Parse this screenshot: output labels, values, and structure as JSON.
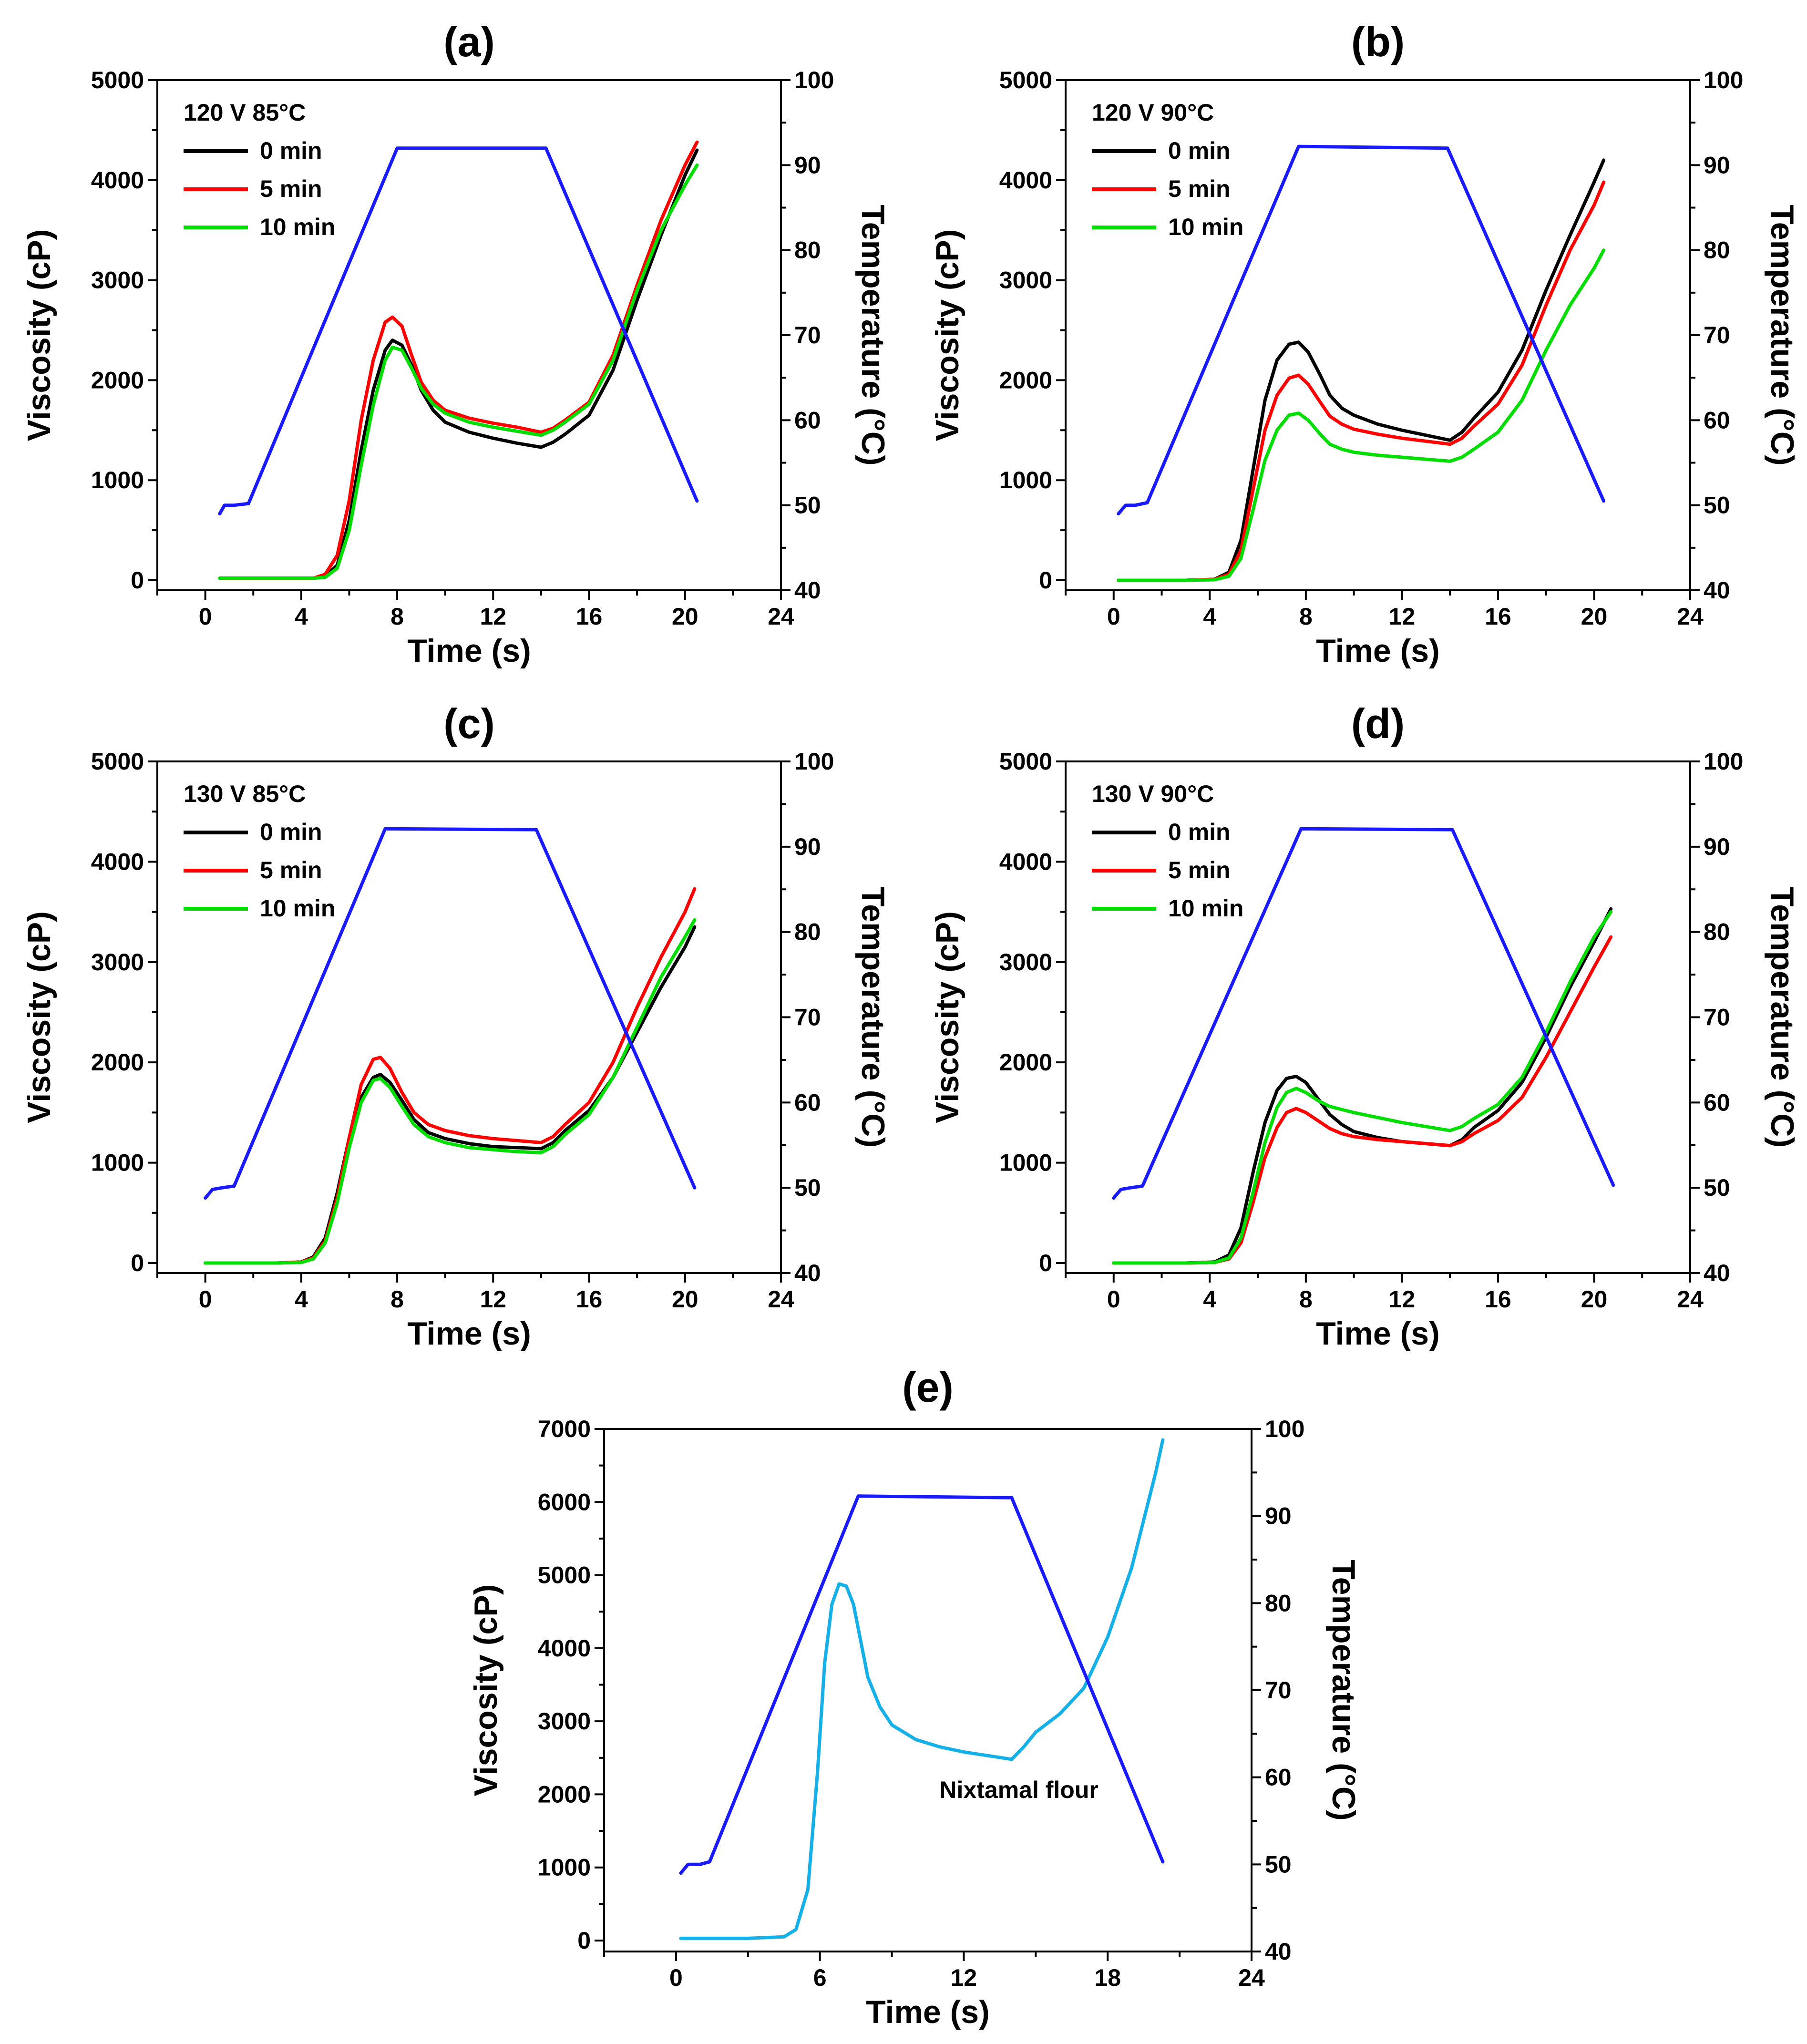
{
  "chart_data": [
    {
      "panel": "(a)",
      "type": "line",
      "xlabel": "Time (s)",
      "ylabel": "Viscosity (cP)",
      "y2label": "Temperature (°C)",
      "xlim": [
        -2,
        24
      ],
      "ylim": [
        -100,
        5000
      ],
      "y2lim": [
        40,
        100
      ],
      "xticks": [
        0,
        4,
        8,
        12,
        16,
        20,
        24
      ],
      "yticks": [
        0,
        1000,
        2000,
        3000,
        4000,
        5000
      ],
      "y2ticks": [
        40,
        50,
        60,
        70,
        80,
        90,
        100
      ],
      "legend_title": "120 V 85°C",
      "series": [
        {
          "name": "0 min",
          "color": "#000000",
          "axis": "left",
          "x": [
            0.6,
            3,
            4.5,
            5,
            5.5,
            6,
            6.5,
            7,
            7.5,
            7.8,
            8.2,
            8.6,
            9,
            9.5,
            10,
            11,
            12,
            13,
            14,
            14.5,
            15,
            16,
            17,
            18,
            19,
            20,
            20.5
          ],
          "y": [
            20,
            20,
            20,
            40,
            150,
            600,
            1300,
            1900,
            2300,
            2400,
            2350,
            2150,
            1900,
            1700,
            1580,
            1480,
            1420,
            1370,
            1330,
            1380,
            1460,
            1650,
            2100,
            2800,
            3450,
            4050,
            4300
          ]
        },
        {
          "name": "5 min",
          "color": "#ff0000",
          "axis": "left",
          "x": [
            0.6,
            3,
            4.5,
            5,
            5.5,
            6,
            6.5,
            7,
            7.5,
            7.8,
            8.2,
            8.6,
            9,
            9.5,
            10,
            11,
            12,
            13,
            14,
            14.5,
            15,
            16,
            17,
            18,
            19,
            20,
            20.5
          ],
          "y": [
            20,
            20,
            20,
            60,
            250,
            800,
            1600,
            2200,
            2580,
            2630,
            2540,
            2250,
            1980,
            1800,
            1700,
            1620,
            1570,
            1530,
            1480,
            1520,
            1600,
            1780,
            2250,
            2950,
            3600,
            4150,
            4380
          ]
        },
        {
          "name": "10 min",
          "color": "#00dd00",
          "axis": "left",
          "x": [
            0.6,
            3,
            4.5,
            5,
            5.5,
            6,
            6.5,
            7,
            7.5,
            7.8,
            8.2,
            8.6,
            9,
            9.5,
            10,
            11,
            12,
            13,
            14,
            14.5,
            15,
            16,
            17,
            18,
            19,
            20,
            20.5
          ],
          "y": [
            20,
            20,
            20,
            30,
            120,
            500,
            1150,
            1750,
            2200,
            2330,
            2300,
            2120,
            1920,
            1760,
            1670,
            1580,
            1530,
            1490,
            1450,
            1500,
            1580,
            1760,
            2200,
            2900,
            3500,
            3950,
            4150
          ]
        },
        {
          "name": "Temperature",
          "color": "#1a1aff",
          "axis": "right",
          "x": [
            0.6,
            0.8,
            1.2,
            1.8,
            8,
            14.2,
            20.5
          ],
          "y": [
            49,
            50,
            50,
            50.2,
            92,
            92,
            50.5
          ]
        }
      ]
    },
    {
      "panel": "(b)",
      "type": "line",
      "xlabel": "Time (s)",
      "ylabel": "Viscosity (cP)",
      "y2label": "Temperature (°C)",
      "xlim": [
        -2,
        24
      ],
      "ylim": [
        -100,
        5000
      ],
      "y2lim": [
        40,
        100
      ],
      "xticks": [
        0,
        4,
        8,
        12,
        16,
        20,
        24
      ],
      "yticks": [
        0,
        1000,
        2000,
        3000,
        4000,
        5000
      ],
      "y2ticks": [
        40,
        50,
        60,
        70,
        80,
        90,
        100
      ],
      "legend_title": "120 V 90°C",
      "series": [
        {
          "name": "0 min",
          "color": "#000000",
          "axis": "left",
          "x": [
            0.2,
            3,
            4.2,
            4.8,
            5.3,
            5.8,
            6.3,
            6.8,
            7.3,
            7.7,
            8.1,
            8.6,
            9,
            9.5,
            10,
            11,
            12,
            13,
            14,
            14.5,
            15,
            16,
            17,
            18,
            19,
            20,
            20.4
          ],
          "y": [
            0,
            0,
            10,
            80,
            400,
            1100,
            1800,
            2200,
            2360,
            2380,
            2280,
            2050,
            1850,
            1720,
            1650,
            1560,
            1500,
            1450,
            1400,
            1480,
            1620,
            1880,
            2300,
            2900,
            3450,
            3980,
            4200
          ]
        },
        {
          "name": "5 min",
          "color": "#ff0000",
          "axis": "left",
          "x": [
            0.2,
            3,
            4.2,
            4.8,
            5.3,
            5.8,
            6.3,
            6.8,
            7.3,
            7.7,
            8.1,
            8.6,
            9,
            9.5,
            10,
            11,
            12,
            13,
            14,
            14.5,
            15,
            16,
            17,
            18,
            19,
            20,
            20.4
          ],
          "y": [
            0,
            0,
            10,
            60,
            300,
            900,
            1500,
            1850,
            2020,
            2050,
            1960,
            1780,
            1640,
            1560,
            1510,
            1460,
            1420,
            1390,
            1360,
            1420,
            1540,
            1760,
            2150,
            2750,
            3300,
            3750,
            3980
          ]
        },
        {
          "name": "10 min",
          "color": "#00dd00",
          "axis": "left",
          "x": [
            0.2,
            3,
            4.2,
            4.8,
            5.3,
            5.8,
            6.3,
            6.8,
            7.3,
            7.7,
            8.1,
            8.6,
            9,
            9.5,
            10,
            11,
            12,
            13,
            14,
            14.5,
            15,
            16,
            17,
            18,
            19,
            20,
            20.4
          ],
          "y": [
            0,
            0,
            5,
            40,
            220,
            700,
            1200,
            1500,
            1650,
            1670,
            1600,
            1460,
            1360,
            1310,
            1280,
            1250,
            1230,
            1210,
            1190,
            1230,
            1310,
            1480,
            1800,
            2300,
            2750,
            3120,
            3300
          ]
        },
        {
          "name": "Temperature",
          "color": "#1a1aff",
          "axis": "right",
          "x": [
            0.2,
            0.5,
            0.9,
            1.4,
            7.7,
            13.9,
            20.4
          ],
          "y": [
            49,
            50,
            50,
            50.3,
            92.2,
            92,
            50.5
          ]
        }
      ]
    },
    {
      "panel": "(c)",
      "type": "line",
      "xlabel": "Time (s)",
      "ylabel": "Viscosity (cP)",
      "y2label": "Temperature (°C)",
      "xlim": [
        -2,
        24
      ],
      "ylim": [
        -100,
        5000
      ],
      "y2lim": [
        40,
        100
      ],
      "xticks": [
        0,
        4,
        8,
        12,
        16,
        20,
        24
      ],
      "yticks": [
        0,
        1000,
        2000,
        3000,
        4000,
        5000
      ],
      "y2ticks": [
        40,
        50,
        60,
        70,
        80,
        90,
        100
      ],
      "legend_title": "130 V 85°C",
      "series": [
        {
          "name": "0 min",
          "color": "#000000",
          "axis": "left",
          "x": [
            0,
            3,
            4,
            4.5,
            5,
            5.5,
            6,
            6.5,
            7,
            7.3,
            7.7,
            8.2,
            8.7,
            9.3,
            10,
            11,
            12,
            13,
            14,
            14.5,
            15,
            16,
            17,
            18,
            19,
            20,
            20.4
          ],
          "y": [
            0,
            0,
            10,
            60,
            250,
            700,
            1250,
            1650,
            1850,
            1880,
            1800,
            1620,
            1430,
            1300,
            1240,
            1190,
            1160,
            1150,
            1140,
            1200,
            1320,
            1520,
            1850,
            2300,
            2750,
            3150,
            3350
          ]
        },
        {
          "name": "5 min",
          "color": "#ff0000",
          "axis": "left",
          "x": [
            0,
            3,
            4,
            4.5,
            5,
            5.5,
            6,
            6.5,
            7,
            7.3,
            7.7,
            8.2,
            8.7,
            9.3,
            10,
            11,
            12,
            13,
            14,
            14.5,
            15,
            16,
            17,
            18,
            19,
            20,
            20.4
          ],
          "y": [
            0,
            0,
            10,
            50,
            220,
            650,
            1250,
            1780,
            2030,
            2050,
            1940,
            1700,
            1500,
            1380,
            1320,
            1270,
            1240,
            1220,
            1200,
            1260,
            1380,
            1600,
            2000,
            2550,
            3050,
            3500,
            3730
          ]
        },
        {
          "name": "10 min",
          "color": "#00dd00",
          "axis": "left",
          "x": [
            0,
            3,
            4,
            4.5,
            5,
            5.5,
            6,
            6.5,
            7,
            7.3,
            7.7,
            8.2,
            8.7,
            9.3,
            10,
            11,
            12,
            13,
            14,
            14.5,
            15,
            16,
            17,
            18,
            19,
            20,
            20.4
          ],
          "y": [
            0,
            0,
            5,
            40,
            200,
            600,
            1150,
            1600,
            1820,
            1840,
            1750,
            1560,
            1380,
            1260,
            1200,
            1150,
            1130,
            1110,
            1100,
            1160,
            1280,
            1480,
            1850,
            2350,
            2850,
            3250,
            3420
          ]
        },
        {
          "name": "Temperature",
          "color": "#1a1aff",
          "axis": "right",
          "x": [
            0,
            0.3,
            0.7,
            1.2,
            7.5,
            13.8,
            20.4
          ],
          "y": [
            48.8,
            49.8,
            50,
            50.2,
            92.1,
            92,
            50
          ]
        }
      ]
    },
    {
      "panel": "(d)",
      "type": "line",
      "xlabel": "Time (s)",
      "ylabel": "Viscosity (cP)",
      "y2label": "Temperature (°C)",
      "xlim": [
        -2,
        24
      ],
      "ylim": [
        -100,
        5000
      ],
      "y2lim": [
        40,
        100
      ],
      "xticks": [
        0,
        4,
        8,
        12,
        16,
        20,
        24
      ],
      "yticks": [
        0,
        1000,
        2000,
        3000,
        4000,
        5000
      ],
      "y2ticks": [
        40,
        50,
        60,
        70,
        80,
        90,
        100
      ],
      "legend_title": "130 V 90°C",
      "series": [
        {
          "name": "0 min",
          "color": "#000000",
          "axis": "left",
          "x": [
            0,
            3,
            4.2,
            4.8,
            5.3,
            5.8,
            6.3,
            6.8,
            7.2,
            7.6,
            8,
            8.5,
            9,
            9.5,
            10,
            11,
            12,
            13,
            14,
            14.5,
            15,
            16,
            17,
            18,
            19,
            20,
            20.7
          ],
          "y": [
            0,
            0,
            10,
            80,
            350,
            900,
            1400,
            1720,
            1840,
            1860,
            1800,
            1640,
            1480,
            1380,
            1310,
            1250,
            1210,
            1190,
            1170,
            1230,
            1350,
            1520,
            1800,
            2250,
            2750,
            3200,
            3530
          ]
        },
        {
          "name": "5 min",
          "color": "#ff0000",
          "axis": "left",
          "x": [
            0,
            3,
            4.2,
            4.8,
            5.3,
            5.8,
            6.3,
            6.8,
            7.2,
            7.6,
            8,
            8.5,
            9,
            9.5,
            10,
            11,
            12,
            13,
            14,
            14.5,
            15,
            16,
            17,
            18,
            19,
            20,
            20.7
          ],
          "y": [
            0,
            0,
            5,
            40,
            200,
            600,
            1050,
            1350,
            1500,
            1540,
            1500,
            1420,
            1340,
            1290,
            1260,
            1230,
            1210,
            1190,
            1170,
            1210,
            1290,
            1420,
            1650,
            2050,
            2500,
            2950,
            3250
          ]
        },
        {
          "name": "10 min",
          "color": "#00dd00",
          "axis": "left",
          "x": [
            0,
            3,
            4.2,
            4.8,
            5.3,
            5.8,
            6.3,
            6.8,
            7.2,
            7.6,
            8,
            8.5,
            9,
            9.5,
            10,
            11,
            12,
            13,
            14,
            14.5,
            15,
            16,
            17,
            18,
            19,
            20,
            20.7
          ],
          "y": [
            0,
            0,
            5,
            50,
            250,
            700,
            1200,
            1550,
            1700,
            1740,
            1700,
            1620,
            1560,
            1530,
            1500,
            1450,
            1400,
            1360,
            1320,
            1360,
            1440,
            1580,
            1850,
            2300,
            2800,
            3250,
            3500
          ]
        },
        {
          "name": "Temperature",
          "color": "#1a1aff",
          "axis": "right",
          "x": [
            0,
            0.3,
            0.7,
            1.2,
            7.8,
            14.1,
            20.8
          ],
          "y": [
            48.8,
            49.8,
            50,
            50.2,
            92.1,
            92,
            50.3
          ]
        }
      ]
    },
    {
      "panel": "(e)",
      "type": "line",
      "xlabel": "Time (s)",
      "ylabel": "Viscosity (cP)",
      "y2label": "Temperature (°C)",
      "xlim": [
        -3,
        24
      ],
      "ylim": [
        -150,
        7000
      ],
      "y2lim": [
        40,
        100
      ],
      "xticks": [
        0,
        6,
        12,
        18,
        24
      ],
      "yticks": [
        0,
        1000,
        2000,
        3000,
        4000,
        5000,
        6000,
        7000
      ],
      "y2ticks": [
        40,
        50,
        60,
        70,
        80,
        90,
        100
      ],
      "annotation": "Nixtamal flour",
      "series": [
        {
          "name": "",
          "color": "#15b0e8",
          "axis": "left",
          "x": [
            0.2,
            3,
            4.5,
            5,
            5.5,
            5.9,
            6.2,
            6.5,
            6.8,
            7.1,
            7.4,
            7.7,
            8,
            8.5,
            9,
            10,
            11,
            12,
            13,
            14,
            14.5,
            15,
            16,
            17,
            18,
            19,
            20,
            20.3
          ],
          "y": [
            30,
            30,
            50,
            150,
            700,
            2300,
            3800,
            4600,
            4880,
            4850,
            4600,
            4100,
            3600,
            3200,
            2950,
            2750,
            2650,
            2580,
            2530,
            2480,
            2650,
            2850,
            3100,
            3450,
            4150,
            5100,
            6400,
            6850
          ]
        },
        {
          "name": "",
          "color": "#1a1aff",
          "axis": "right",
          "x": [
            0.2,
            0.5,
            1,
            1.4,
            7.6,
            14,
            20.3
          ],
          "y": [
            49,
            50,
            50,
            50.3,
            92.3,
            92.1,
            50.3
          ]
        }
      ]
    }
  ]
}
